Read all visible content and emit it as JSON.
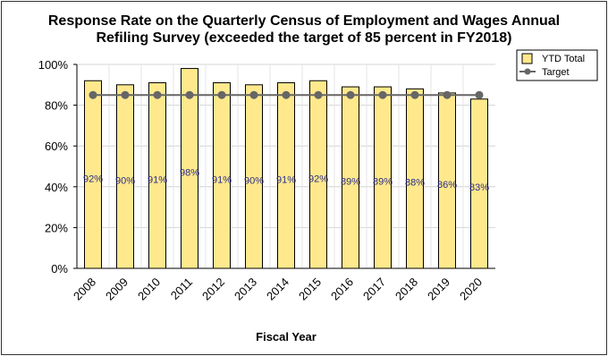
{
  "chart_data": {
    "type": "bar",
    "title_line1": "Response Rate on the Quarterly Census of Employment and Wages Annual",
    "title_line2": "Refiling Survey (exceeded the target of 85 percent in FY2018)",
    "xlabel": "Fiscal Year",
    "ylabel": "",
    "ylim": [
      0,
      100
    ],
    "yticks": [
      "0%",
      "20%",
      "40%",
      "60%",
      "80%",
      "100%"
    ],
    "ytick_values": [
      0,
      20,
      40,
      60,
      80,
      100
    ],
    "categories": [
      "2008",
      "2009",
      "2010",
      "2011",
      "2012",
      "2013",
      "2014",
      "2015",
      "2016",
      "2017",
      "2018",
      "2019",
      "2020"
    ],
    "series": [
      {
        "name": "YTD Total",
        "type": "bar",
        "color": "#ffe98c",
        "values": [
          92,
          90,
          91,
          98,
          91,
          90,
          91,
          92,
          89,
          89,
          88,
          86,
          83
        ],
        "labels": [
          "92%",
          "90%",
          "91%",
          "98%",
          "91%",
          "90%",
          "91%",
          "92%",
          "89%",
          "89%",
          "88%",
          "86%",
          "83%"
        ]
      },
      {
        "name": "Target",
        "type": "line",
        "color": "#666666",
        "values": [
          85,
          85,
          85,
          85,
          85,
          85,
          85,
          85,
          85,
          85,
          85,
          85,
          85
        ]
      }
    ],
    "grid": true,
    "legend_position": "top-right"
  }
}
